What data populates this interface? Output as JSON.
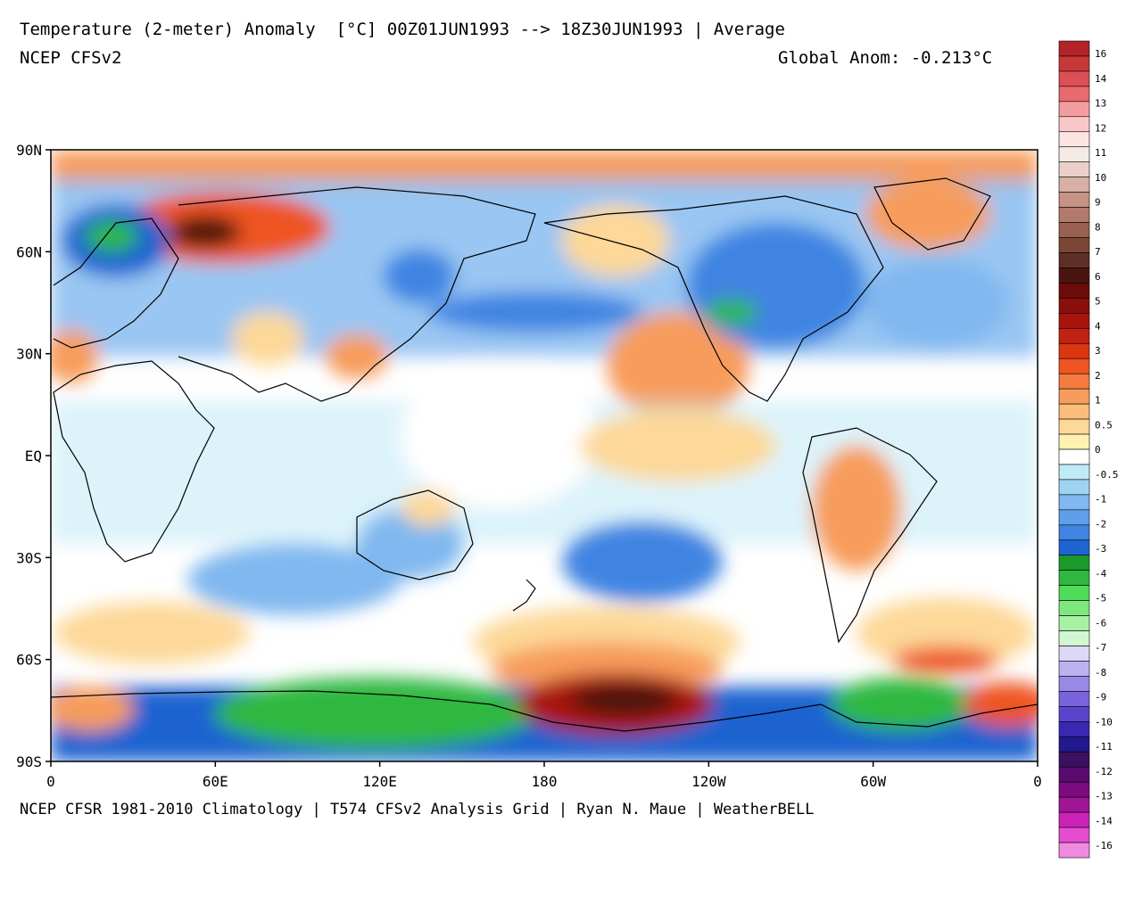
{
  "header": {
    "title": "Temperature (2-meter) Anomaly  [°C] 00Z01JUN1993 --> 18Z30JUN1993 | Average",
    "model": "NCEP CFSv2",
    "global_anom": "Global Anom: -0.213°C"
  },
  "footer": {
    "credits": "NCEP CFSR 1981-2010 Climatology | T574 CFSv2 Analysis Grid | Ryan N. Maue | WeatherBELL"
  },
  "axes": {
    "y_ticks": [
      "90N",
      "60N",
      "30N",
      "EQ",
      "30S",
      "60S",
      "90S"
    ],
    "x_ticks": [
      "0",
      "60E",
      "120E",
      "180",
      "120W",
      "60W",
      "0"
    ]
  },
  "colorbar": {
    "labels": [
      "16",
      "14",
      "13",
      "12",
      "11",
      "10",
      "9",
      "8",
      "7",
      "6",
      "5",
      "4",
      "3",
      "2",
      "1",
      "0.5",
      "0",
      "-0.5",
      "-1",
      "-2",
      "-3",
      "-4",
      "-5",
      "-6",
      "-7",
      "-8",
      "-9",
      "-10",
      "-11",
      "-12",
      "-13",
      "-14",
      "-16"
    ],
    "colors": [
      "#b22228",
      "#c83838",
      "#dc4f55",
      "#e86a70",
      "#f39da0",
      "#fac7c8",
      "#fde4e2",
      "#f5ebe6",
      "#ead0c8",
      "#d9b0a6",
      "#c69384",
      "#b07a6c",
      "#9a6052",
      "#7c4637",
      "#5e2f24",
      "#4a1510",
      "#6b0c0a",
      "#8a0f0c",
      "#a8150e",
      "#c22212",
      "#dc3512",
      "#ee5522",
      "#f47a40",
      "#f79c5c",
      "#fbbd7a",
      "#fdd898",
      "#fff2b0",
      "#ffffff",
      "#bfeaf6",
      "#9fd3f2",
      "#80b8ef",
      "#5f9fea",
      "#3f84e2",
      "#1f64d0",
      "#1a9a2a",
      "#2eb840",
      "#4edc5a",
      "#7ee87e",
      "#a8f0a4",
      "#d2f6d0",
      "#dcd8f6",
      "#bcb2f0",
      "#9a88e6",
      "#7a64dc",
      "#5a44cc",
      "#3a28b0",
      "#241890",
      "#3a1060",
      "#5a0c6e",
      "#7a0c80",
      "#a01696",
      "#cc22b8",
      "#e64cd0",
      "#f08ae0"
    ],
    "note": ""
  },
  "map": {
    "colors": {
      "ocean_white": "#ffffff",
      "cool1": "#bfeaf6",
      "cool2": "#80b8ef",
      "cool3": "#3f84e2",
      "cool4": "#1f64d0",
      "green": "#2eb840",
      "darkgreen": "#1a9a2a",
      "warm1": "#fdd898",
      "warm2": "#f79c5c",
      "warm3": "#ee5522",
      "warm4": "#a8150e",
      "warm5": "#4a1510",
      "coast": "#000000"
    }
  }
}
